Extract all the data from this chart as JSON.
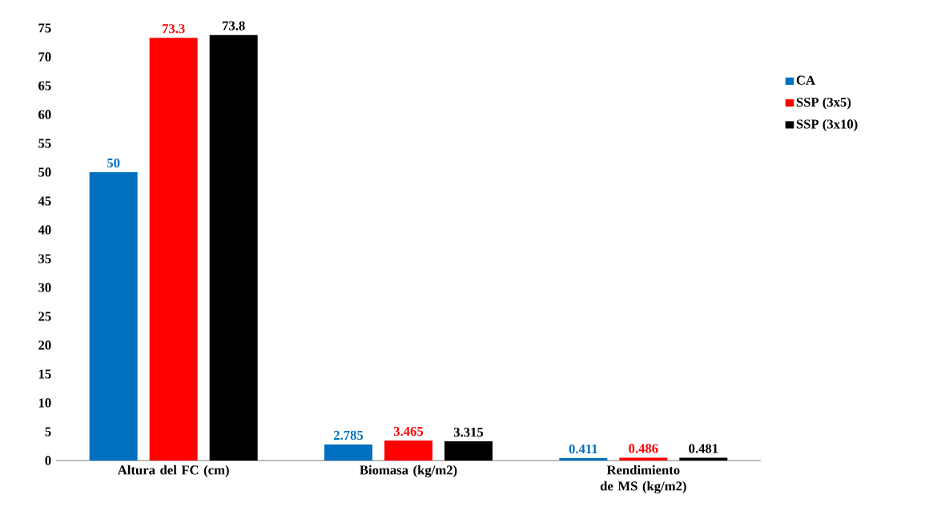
{
  "chart_data": {
    "type": "bar",
    "categories": [
      "Altura del FC (cm)",
      "Biomasa (kg/m2)",
      "Rendimiento de MS (kg/m2)"
    ],
    "series": [
      {
        "name": "CA",
        "color": "#0070c0",
        "values": [
          50,
          2.785,
          0.411
        ]
      },
      {
        "name": "SSP (3x5)",
        "color": "#ff0000",
        "values": [
          73.3,
          3.465,
          0.486
        ]
      },
      {
        "name": "SSP (3x10)",
        "color": "#000000",
        "values": [
          73.8,
          3.315,
          0.481
        ]
      }
    ],
    "ylim": [
      0,
      75
    ],
    "yticks": [
      0,
      5,
      10,
      15,
      20,
      25,
      30,
      35,
      40,
      45,
      50,
      55,
      60,
      65,
      70,
      75
    ],
    "grid": false,
    "legend": "right",
    "data_labels": true
  }
}
